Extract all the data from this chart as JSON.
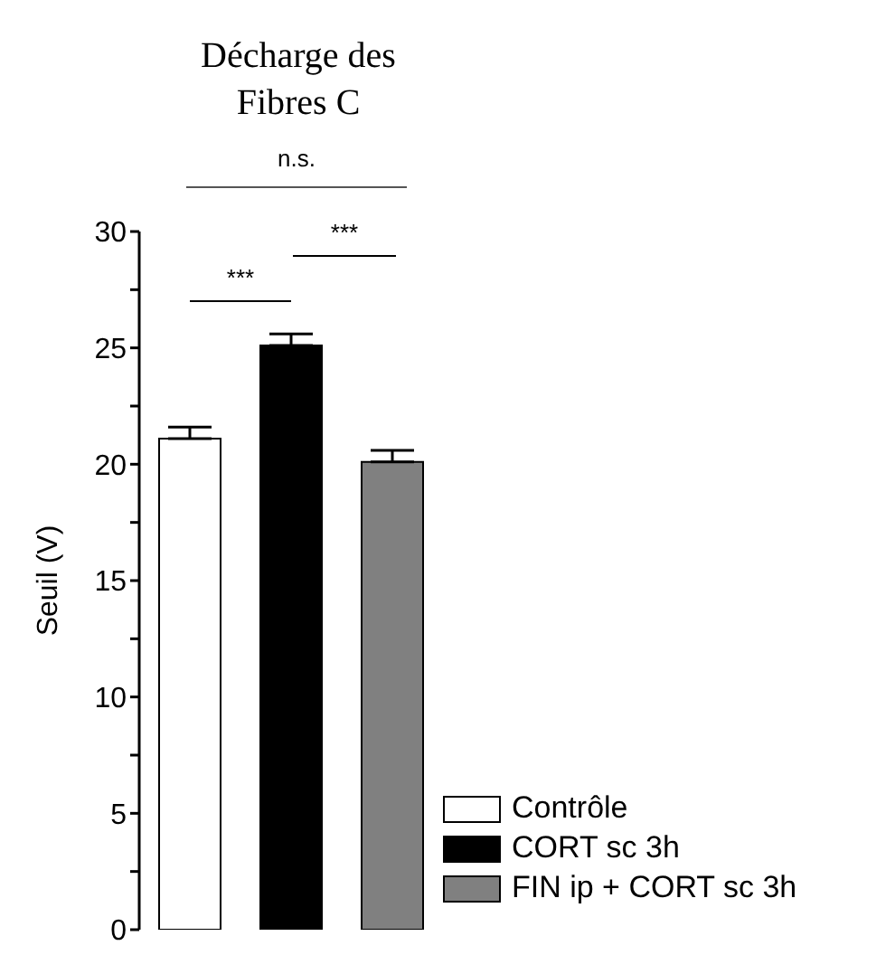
{
  "chart_data": {
    "type": "bar",
    "title": "Décharge des Fibres C",
    "ylabel": "Seuil (V)",
    "categories": [
      null,
      null,
      null
    ],
    "stacked": true,
    "series": [
      {
        "name": "Contrôle",
        "color": "#ffffff",
        "values": [
          21.1,
          null,
          null
        ],
        "errors": [
          [
            21.1,
            21.6
          ],
          null,
          null
        ]
      },
      {
        "name": "CORT sc 3h",
        "color": "#000000",
        "values": [
          null,
          25.1,
          null
        ],
        "errors": [
          null,
          [
            25.1,
            25.6
          ],
          null
        ]
      },
      {
        "name": "FIN ip + CORT sc 3h",
        "color": "#808080",
        "values": [
          null,
          null,
          20.1
        ],
        "errors": [
          null,
          null,
          [
            20.1,
            20.6
          ]
        ]
      }
    ],
    "ylim": [
      0,
      30
    ],
    "yticks": [
      0,
      {
        "value": 2.5,
        "label": null
      },
      5,
      {
        "value": 7.5,
        "label": null
      },
      10,
      {
        "value": 12.5,
        "label": null
      },
      15,
      {
        "value": 17.5,
        "label": null
      },
      20,
      {
        "value": 22.5,
        "label": null
      },
      25,
      {
        "value": 27.5,
        "label": null
      },
      30
    ],
    "annotations": [
      "n.s.",
      "***",
      "***"
    ],
    "grid": false,
    "legend": "bottom right",
    "tick_labels": "y"
  }
}
